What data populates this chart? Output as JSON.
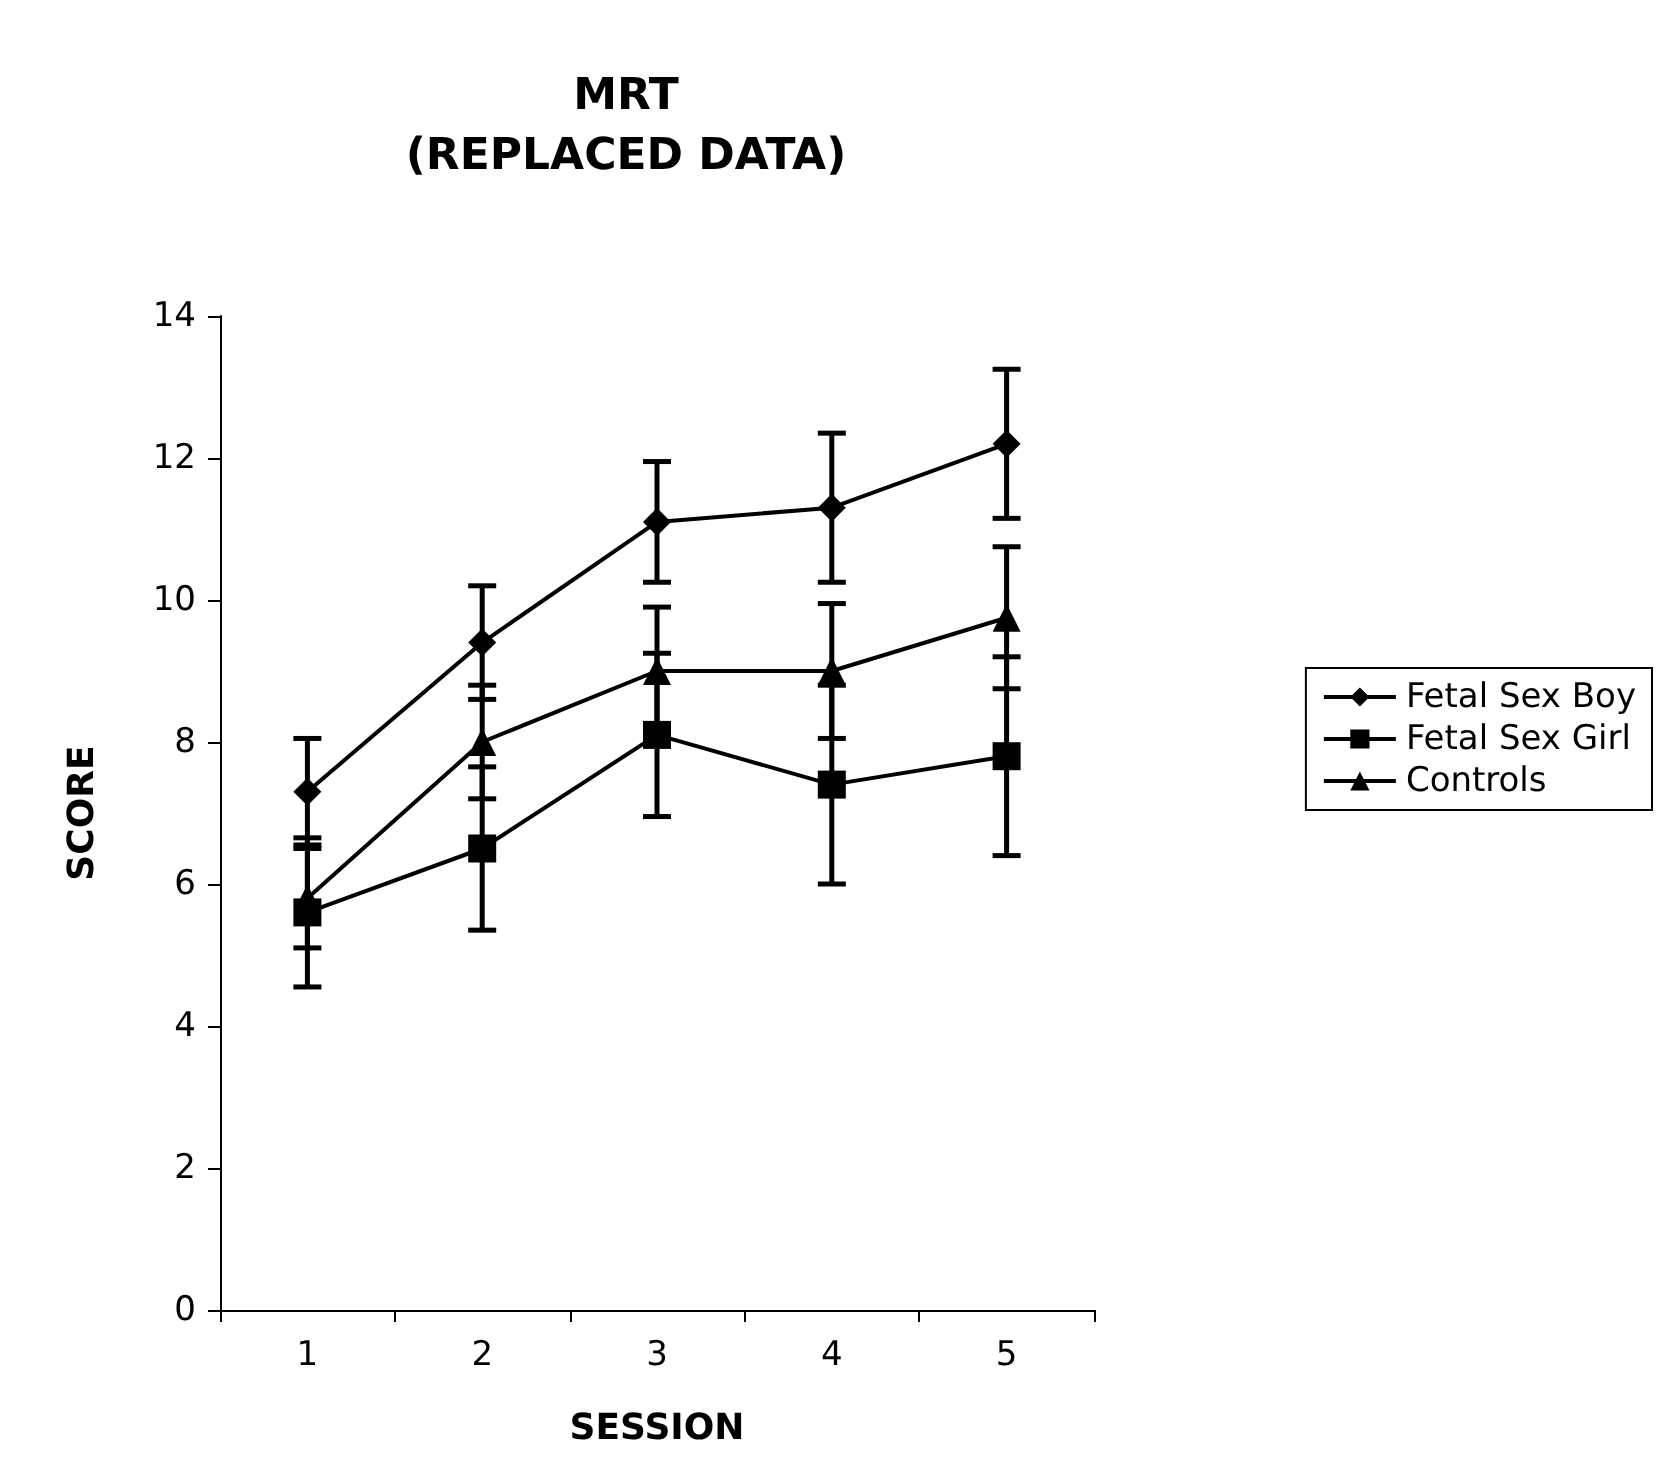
{
  "chart_data": {
    "type": "line",
    "title": "MRT\n(REPLACED DATA)",
    "xlabel": "SESSION",
    "ylabel": "SCORE",
    "categories": [
      "1",
      "2",
      "3",
      "4",
      "5"
    ],
    "series": [
      {
        "name": "Fetal Sex Boy",
        "color": "#000000",
        "marker": "diamond",
        "values": [
          7.3,
          9.4,
          11.1,
          11.3,
          12.2
        ],
        "errors": [
          0.75,
          0.8,
          0.85,
          1.05,
          1.05
        ]
      },
      {
        "name": "Fetal Sex Girl",
        "color": "#000000",
        "marker": "square",
        "values": [
          5.6,
          6.5,
          8.1,
          7.4,
          7.8
        ],
        "errors": [
          1.05,
          1.15,
          1.15,
          1.4,
          1.4
        ]
      },
      {
        "name": "Controls",
        "color": "#000000",
        "marker": "triangle",
        "values": [
          5.8,
          8.0,
          9.0,
          9.0,
          9.75
        ],
        "errors": [
          0.7,
          0.8,
          0.9,
          0.95,
          1.0
        ]
      }
    ],
    "ylim": [
      0,
      14
    ],
    "yticks": [
      0,
      2,
      4,
      6,
      8,
      10,
      12,
      14
    ],
    "grid": false,
    "legend": "right",
    "line_style": "solid"
  }
}
